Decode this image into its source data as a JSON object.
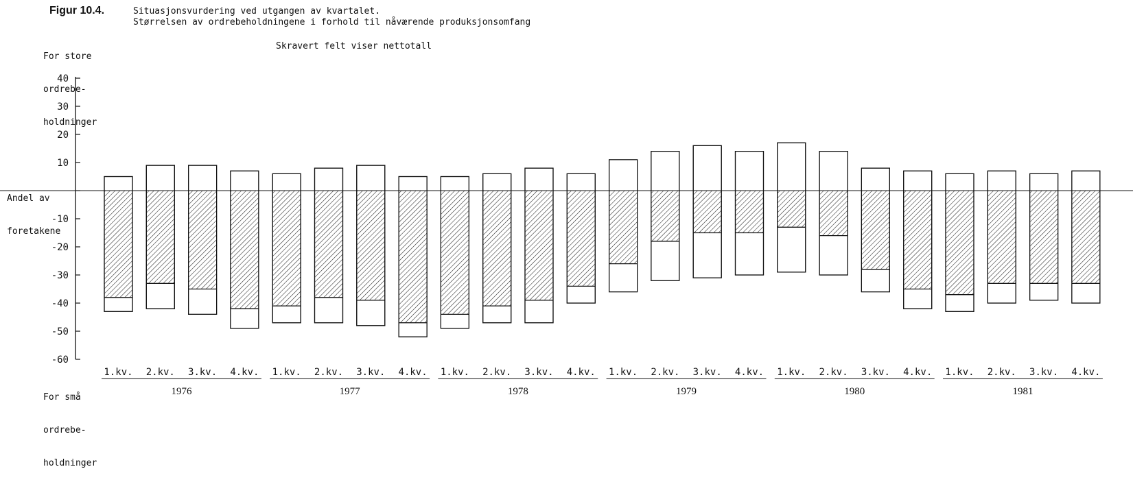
{
  "figure": {
    "label": "Figur 10.4.",
    "title_line1": "Situasjonsvurdering ved utgangen av kvartalet.",
    "title_line2": "Størrelsen av ordrebeholdningene i forhold til nåværende produksjonsomfang",
    "note": "Skravert felt viser nettotall"
  },
  "labels": {
    "top": [
      "For store",
      "ordrebe-",
      "holdninger"
    ],
    "middle": [
      "Andel av",
      "foretakene"
    ],
    "bottom": [
      "For små",
      "ordrebe-",
      "holdninger"
    ]
  },
  "chart_data": {
    "type": "bar",
    "ylabel": "Andel av foretakene",
    "ylim": [
      -60,
      40
    ],
    "yticks": [
      40,
      30,
      20,
      10,
      0,
      -10,
      -20,
      -30,
      -40,
      -50,
      -60
    ],
    "ytick_labels": [
      "40",
      "30",
      "20",
      "10",
      "",
      "-10",
      "-20",
      "-30",
      "-40",
      "-50",
      "-60"
    ],
    "years": [
      "1976",
      "1977",
      "1978",
      "1979",
      "1980",
      "1981"
    ],
    "quarter_labels": [
      "1.kv.",
      "2.kv.",
      "3.kv.",
      "4.kv."
    ],
    "categories": [
      "1976 1.kv.",
      "1976 2.kv.",
      "1976 3.kv.",
      "1976 4.kv.",
      "1977 1.kv.",
      "1977 2.kv.",
      "1977 3.kv.",
      "1977 4.kv.",
      "1978 1.kv.",
      "1978 2.kv.",
      "1978 3.kv.",
      "1978 4.kv.",
      "1979 1.kv.",
      "1979 2.kv.",
      "1979 3.kv.",
      "1979 4.kv.",
      "1980 1.kv.",
      "1980 2.kv.",
      "1980 3.kv.",
      "1980 4.kv.",
      "1981 1.kv.",
      "1981 2.kv.",
      "1981 3.kv.",
      "1981 4.kv."
    ],
    "series": [
      {
        "name": "For store ordrebeholdninger",
        "values": [
          5,
          9,
          9,
          7,
          6,
          8,
          9,
          5,
          5,
          6,
          8,
          6,
          11,
          14,
          16,
          14,
          17,
          14,
          8,
          7,
          6,
          7,
          6,
          7
        ]
      },
      {
        "name": "For små ordrebeholdninger",
        "values": [
          -43,
          -42,
          -44,
          -49,
          -47,
          -47,
          -48,
          -52,
          -49,
          -47,
          -47,
          -40,
          -36,
          -32,
          -31,
          -30,
          -29,
          -30,
          -36,
          -42,
          -43,
          -40,
          -39,
          -40
        ]
      },
      {
        "name": "Nettotall",
        "values": [
          -38,
          -33,
          -35,
          -42,
          -41,
          -38,
          -39,
          -47,
          -44,
          -41,
          -39,
          -34,
          -26,
          -18,
          -15,
          -15,
          -13,
          -16,
          -28,
          -35,
          -37,
          -33,
          -33,
          -33
        ]
      }
    ]
  }
}
